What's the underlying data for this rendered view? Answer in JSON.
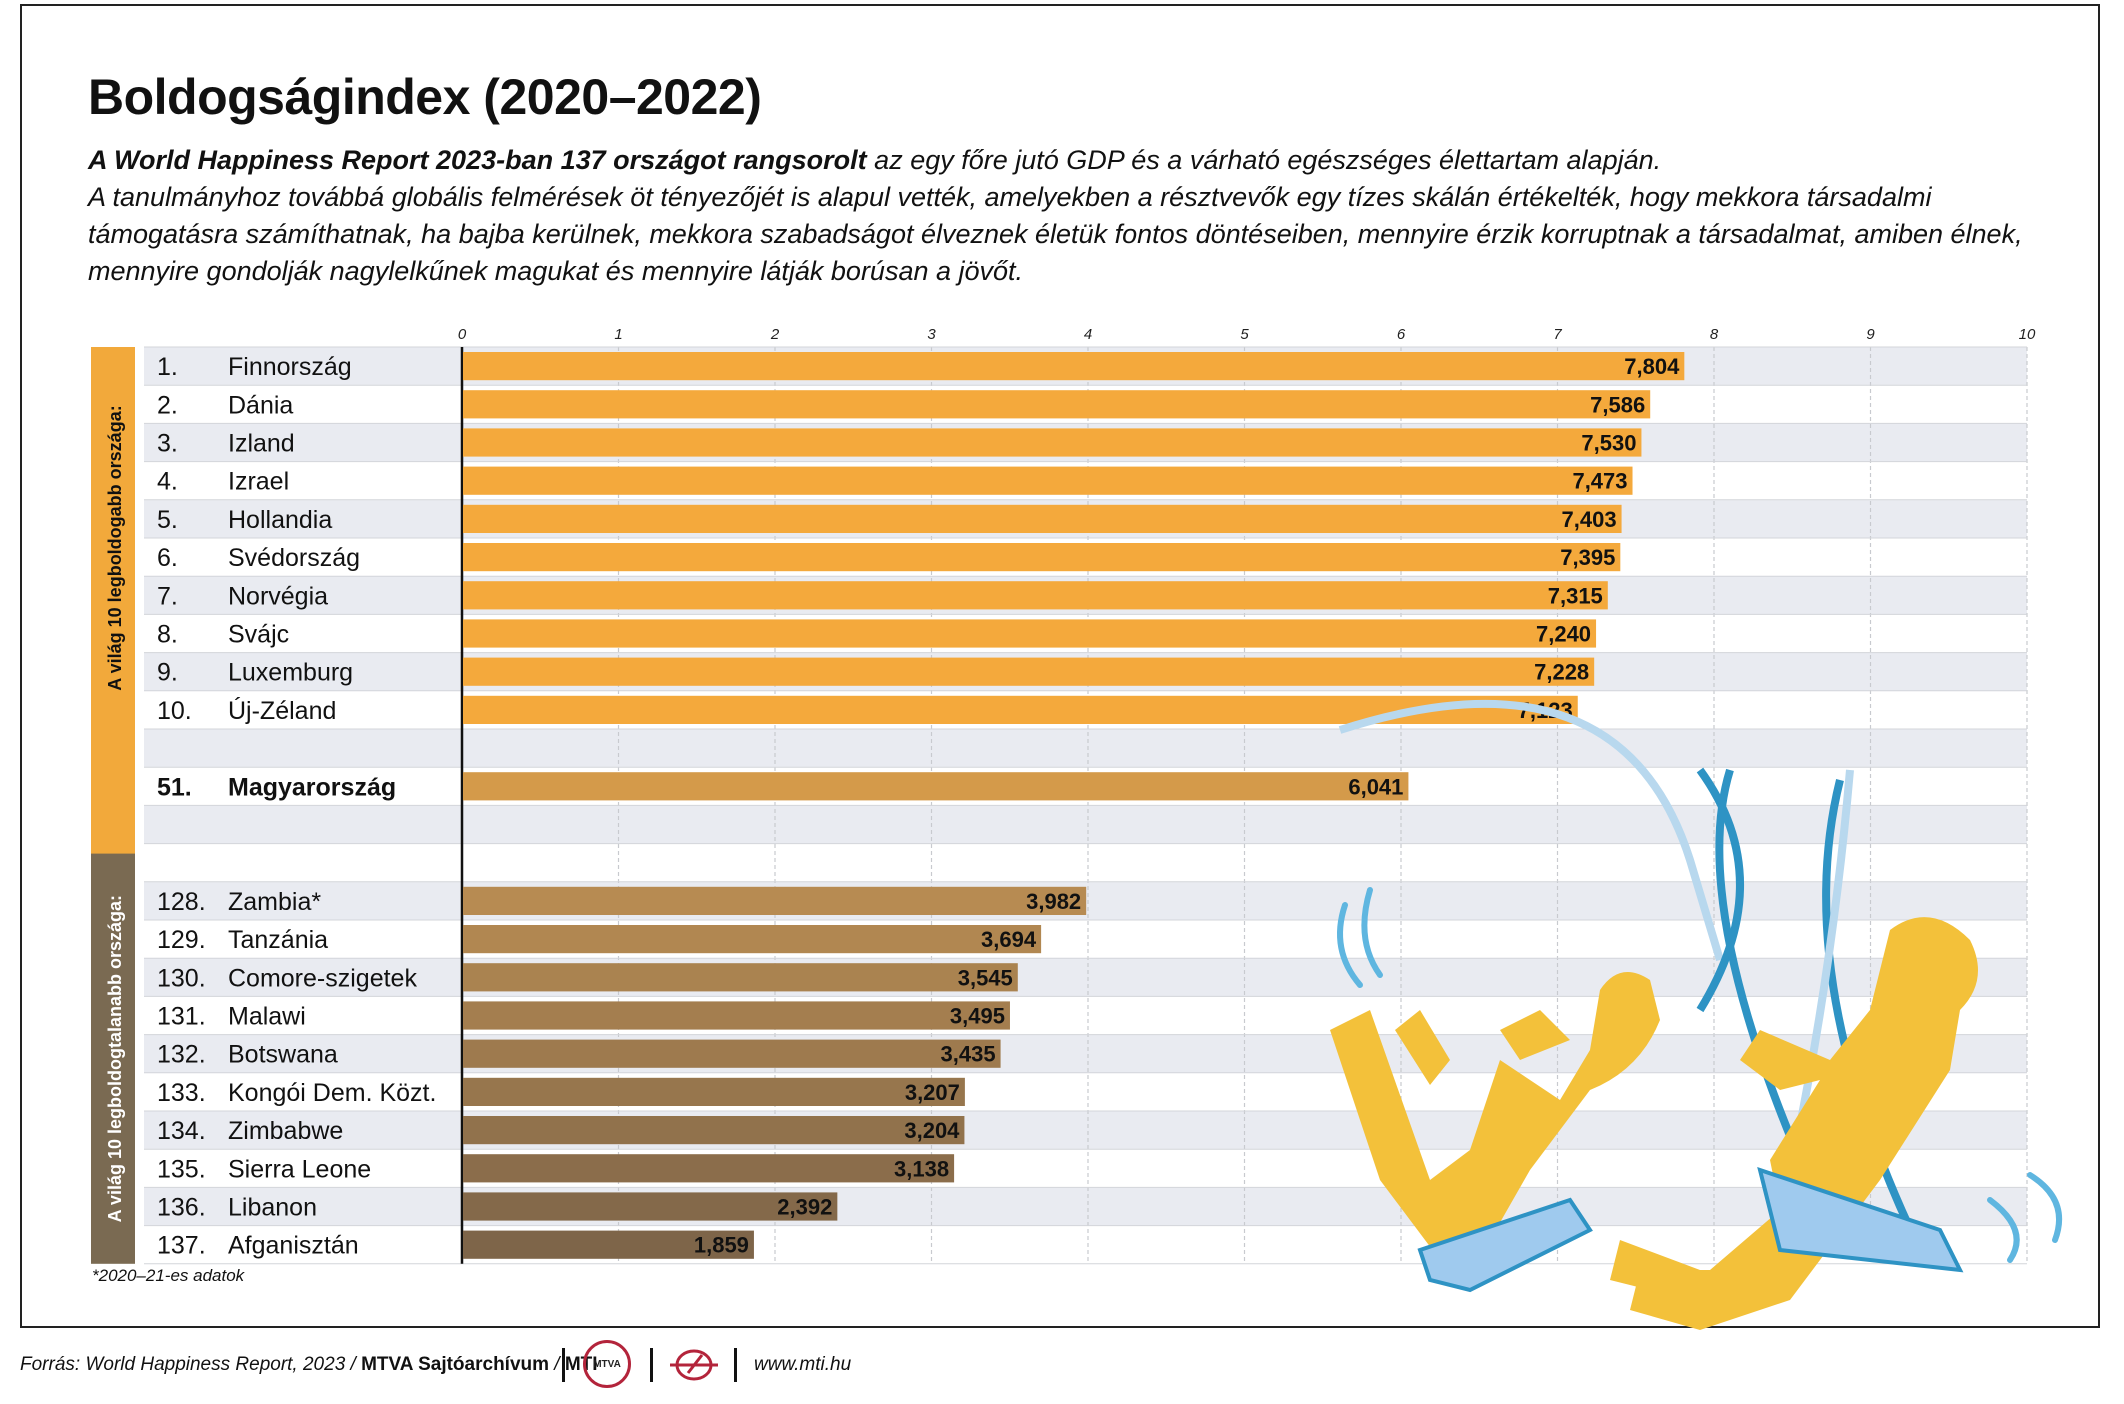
{
  "title": "Boldogságindex (2020–2022)",
  "subtitle_bold": "A World Happiness Report 2023-ban 137 országot rangsorolt",
  "subtitle_rest": " az egy főre jutó GDP és a várható egészséges élettartam alapján.",
  "subtitle_2": "A tanulmányhoz továbbá globális felmérések öt tényezőjét is alapul vették, amelyekben a résztvevők egy tízes skálán értékelték, hogy mekkora társadalmi támogatásra számíthatnak, ha bajba kerülnek, mekkora szabadságot élveznek életük fontos döntéseiben, mennyire érzik korruptnak a társadalmat, amiben élnek, mennyire gondolják nagylelkűnek magukat és mennyire látják borúsan a jövőt.",
  "footnote": "*2020–21-es adatok",
  "source_prefix": "Forrás: World Happiness Report, 2023 / ",
  "source_bold": "MTVA Sajtóarchívum",
  "source_sep": " / ",
  "source_mti": "MTI",
  "logo_text": "MTVA",
  "url": "www.mti.hu",
  "colors": {
    "top_bar": "#f4a93c",
    "hungary_bar": "#d49a4a",
    "bottom_start": "#b78b52",
    "bottom_end": "#7e6549",
    "row_shade": "#e9ebf1",
    "grid": "#c8cacf",
    "side_label_bg": "#f2a93b",
    "side_label_bottom_bg": "#7a6a52",
    "figure_yellow": "#f3c13a",
    "swing_blue": "#2e93c4",
    "seat_blue": "#9fcaee"
  },
  "chart_data": {
    "type": "bar",
    "orientation": "horizontal",
    "xlim": [
      0,
      10
    ],
    "ticks": [
      "0",
      "1",
      "2",
      "3",
      "4",
      "5",
      "6",
      "7",
      "8",
      "9",
      "10"
    ],
    "grid": true,
    "group_labels": [
      "A világ 10 legboldogabb országa:",
      "A világ 10 legboldogtalanabb országa:"
    ],
    "rows": [
      {
        "rank": "1.",
        "country": "Finnország",
        "value": 7.804,
        "label": "7,804",
        "group": "top"
      },
      {
        "rank": "2.",
        "country": "Dánia",
        "value": 7.586,
        "label": "7,586",
        "group": "top"
      },
      {
        "rank": "3.",
        "country": "Izland",
        "value": 7.53,
        "label": "7,530",
        "group": "top"
      },
      {
        "rank": "4.",
        "country": "Izrael",
        "value": 7.473,
        "label": "7,473",
        "group": "top"
      },
      {
        "rank": "5.",
        "country": "Hollandia",
        "value": 7.403,
        "label": "7,403",
        "group": "top"
      },
      {
        "rank": "6.",
        "country": "Svédország",
        "value": 7.395,
        "label": "7,395",
        "group": "top"
      },
      {
        "rank": "7.",
        "country": "Norvégia",
        "value": 7.315,
        "label": "7,315",
        "group": "top"
      },
      {
        "rank": "8.",
        "country": "Svájc",
        "value": 7.24,
        "label": "7,240",
        "group": "top"
      },
      {
        "rank": "9.",
        "country": "Luxemburg",
        "value": 7.228,
        "label": "7,228",
        "group": "top"
      },
      {
        "rank": "10.",
        "country": "Új-Zéland",
        "value": 7.123,
        "label": "7,123",
        "group": "top"
      },
      {
        "rank": "51.",
        "country": "Magyarország",
        "value": 6.041,
        "label": "6,041",
        "group": "hungary"
      },
      {
        "rank": "128.",
        "country": "Zambia*",
        "value": 3.982,
        "label": "3,982",
        "group": "bottom"
      },
      {
        "rank": "129.",
        "country": "Tanzánia",
        "value": 3.694,
        "label": "3,694",
        "group": "bottom"
      },
      {
        "rank": "130.",
        "country": "Comore-szigetek",
        "value": 3.545,
        "label": "3,545",
        "group": "bottom"
      },
      {
        "rank": "131.",
        "country": "Malawi",
        "value": 3.495,
        "label": "3,495",
        "group": "bottom"
      },
      {
        "rank": "132.",
        "country": "Botswana",
        "value": 3.435,
        "label": "3,435",
        "group": "bottom"
      },
      {
        "rank": "133.",
        "country": "Kongói Dem. Közt.",
        "value": 3.207,
        "label": "3,207",
        "group": "bottom"
      },
      {
        "rank": "134.",
        "country": "Zimbabwe",
        "value": 3.204,
        "label": "3,204",
        "group": "bottom"
      },
      {
        "rank": "135.",
        "country": "Sierra Leone",
        "value": 3.138,
        "label": "3,138",
        "group": "bottom"
      },
      {
        "rank": "136.",
        "country": "Libanon",
        "value": 2.392,
        "label": "2,392",
        "group": "bottom"
      },
      {
        "rank": "137.",
        "country": "Afganisztán",
        "value": 1.859,
        "label": "1,859",
        "group": "bottom"
      }
    ]
  }
}
